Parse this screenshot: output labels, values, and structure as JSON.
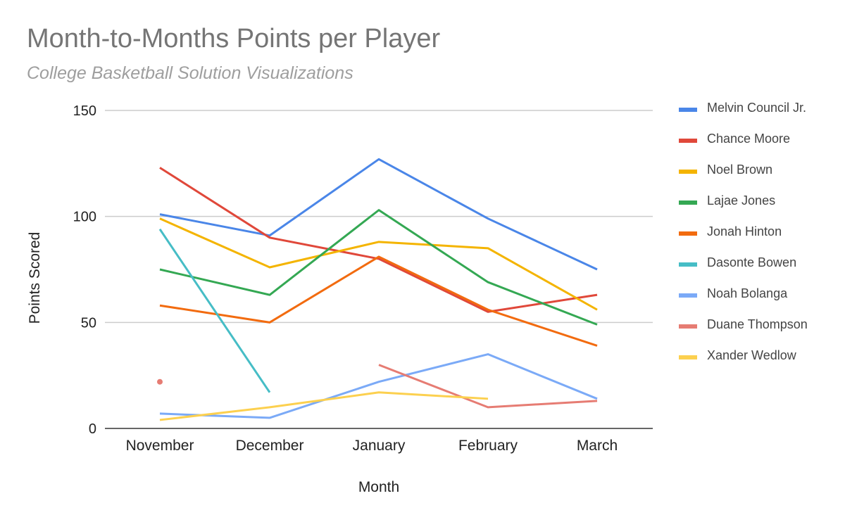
{
  "chart_data": {
    "type": "line",
    "title": "Month-to-Months Points per Player",
    "subtitle": "College Basketball Solution Visualizations",
    "xlabel": "Month",
    "ylabel": "Points Scored",
    "categories": [
      "November",
      "December",
      "January",
      "February",
      "March"
    ],
    "ylim": [
      0,
      150
    ],
    "yticks": [
      0,
      50,
      100,
      150
    ],
    "grid": true,
    "legend_position": "right",
    "series": [
      {
        "name": "Melvin Council Jr.",
        "color": "#4a86e8",
        "values": [
          101,
          91,
          127,
          99,
          75
        ]
      },
      {
        "name": "Chance Moore",
        "color": "#e0483a",
        "values": [
          123,
          90,
          80,
          55,
          63
        ]
      },
      {
        "name": "Noel Brown",
        "color": "#f4b400",
        "values": [
          99,
          76,
          88,
          85,
          56
        ]
      },
      {
        "name": "Lajae Jones",
        "color": "#34a853",
        "values": [
          75,
          63,
          103,
          69,
          49
        ]
      },
      {
        "name": "Jonah Hinton",
        "color": "#f26b0f",
        "values": [
          58,
          50,
          81,
          56,
          39
        ]
      },
      {
        "name": "Dasonte Bowen",
        "color": "#46bdc6",
        "values": [
          94,
          17,
          null,
          null,
          null
        ]
      },
      {
        "name": "Noah Bolanga",
        "color": "#7baaf7",
        "values": [
          7,
          5,
          22,
          35,
          14
        ]
      },
      {
        "name": "Duane Thompson",
        "color": "#e67c73",
        "values": [
          22,
          null,
          30,
          10,
          13
        ]
      },
      {
        "name": "Xander Wedlow",
        "color": "#fcd04f",
        "values": [
          4,
          10,
          17,
          14,
          null
        ]
      }
    ]
  }
}
